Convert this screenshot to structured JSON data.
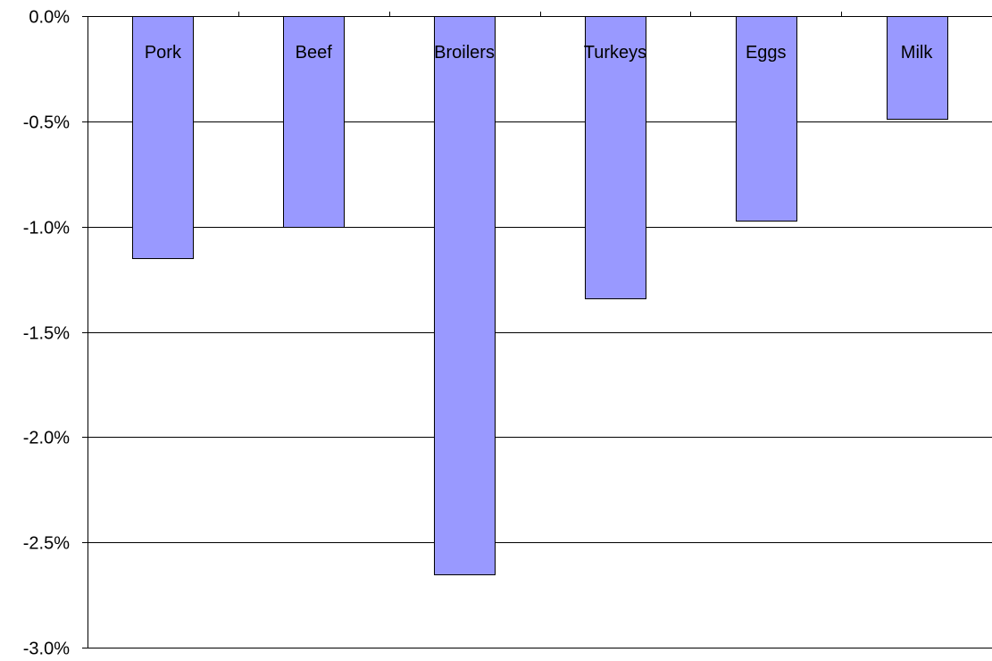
{
  "chart_data": {
    "type": "bar",
    "title": "",
    "xlabel": "",
    "ylabel": "",
    "categories": [
      "Pork",
      "Beef",
      "Broilers",
      "Turkeys",
      "Eggs",
      "Milk"
    ],
    "values": [
      -1.15,
      -1.0,
      -2.65,
      -1.34,
      -0.97,
      -0.49
    ],
    "value_unit": "%",
    "ylim": [
      -3.0,
      0.0
    ],
    "yticks": [
      0.0,
      -0.5,
      -1.0,
      -1.5,
      -2.0,
      -2.5,
      -3.0
    ],
    "ytick_labels": [
      "0.0%",
      "-0.5%",
      "-1.0%",
      "-1.5%",
      "-2.0%",
      "-2.5%",
      "-3.0%"
    ],
    "grid": true,
    "legend": "none",
    "category_label_position": "top-inside-bar",
    "colors": {
      "bar_fill": "#9999FF",
      "bar_stroke": "#000000",
      "grid": "#000000",
      "axis": "#000000",
      "background": "#FFFFFF"
    }
  }
}
